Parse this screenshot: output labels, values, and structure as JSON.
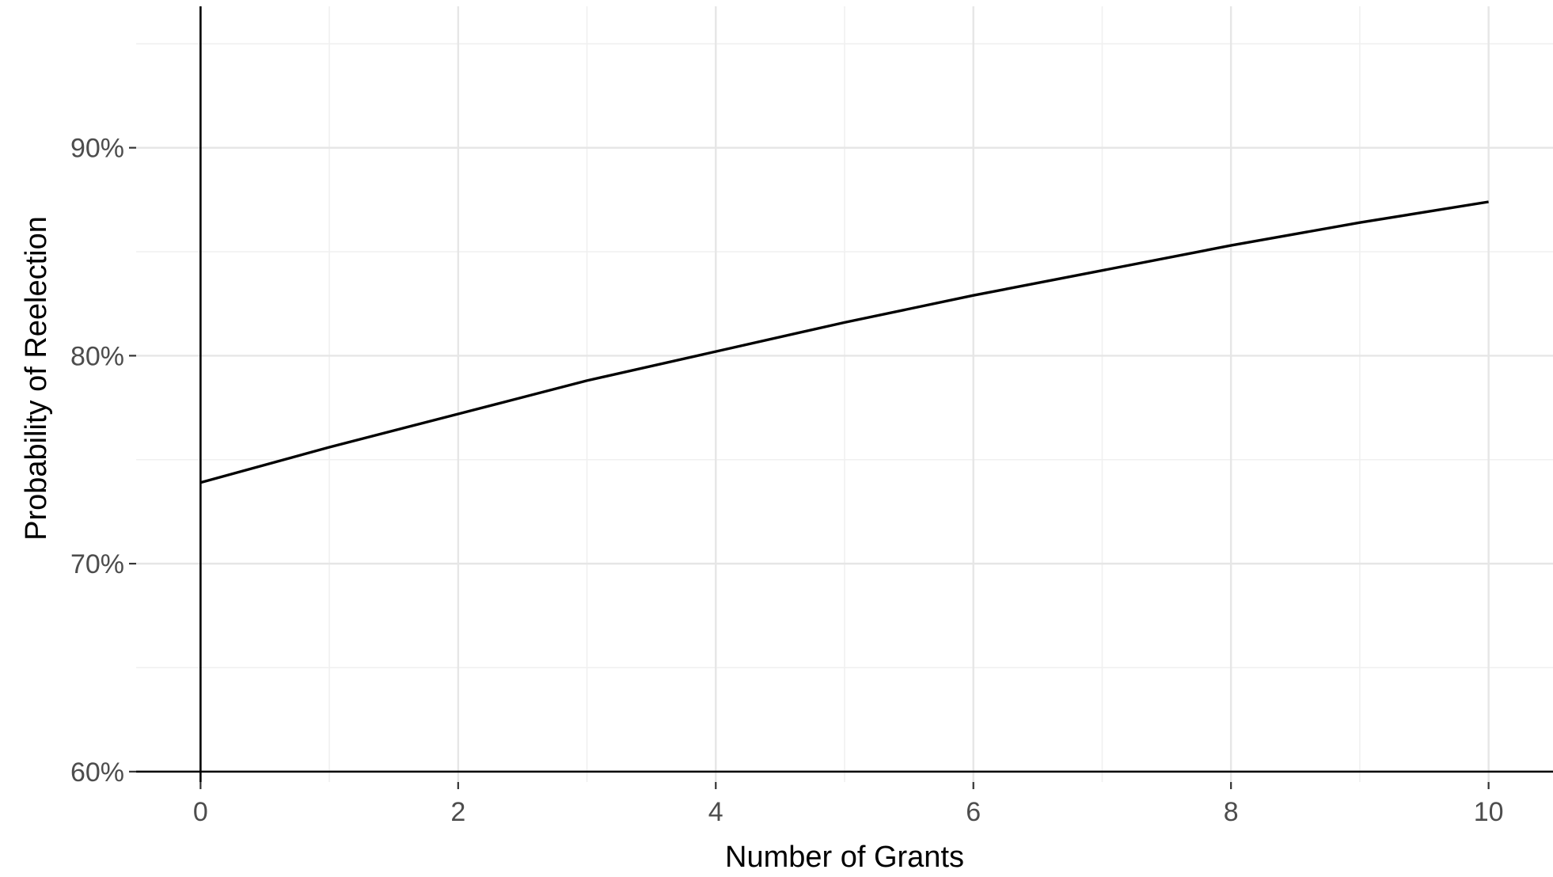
{
  "chart_data": {
    "type": "line",
    "title": "",
    "xlabel": "Number of Grants",
    "ylabel": "Probability of Reelection",
    "xlim": [
      -0.5,
      10.5
    ],
    "ylim": [
      0.595,
      0.968
    ],
    "x_ticks": [
      0,
      2,
      4,
      6,
      8,
      10
    ],
    "x_tick_labels": [
      "0",
      "2",
      "4",
      "6",
      "8",
      "10"
    ],
    "y_ticks": [
      0.6,
      0.7,
      0.8,
      0.9
    ],
    "y_tick_labels": [
      "60%",
      "70%",
      "80%",
      "90%"
    ],
    "x_minor_ticks": [
      1,
      3,
      5,
      7,
      9
    ],
    "y_minor_ticks": [
      0.65,
      0.75,
      0.85,
      0.95
    ],
    "reference_lines": {
      "x": 0,
      "y": 0.6
    },
    "grid": true,
    "legend": "none",
    "series": [
      {
        "x": [
          0,
          1,
          2,
          3,
          4,
          5,
          6,
          7,
          8,
          9,
          10
        ],
        "y": [
          0.739,
          0.756,
          0.772,
          0.788,
          0.802,
          0.816,
          0.829,
          0.841,
          0.853,
          0.864,
          0.874
        ]
      }
    ],
    "colors": {
      "line": "#000000",
      "grid": "#e6e6e6",
      "text": "#4d4d4d"
    }
  }
}
